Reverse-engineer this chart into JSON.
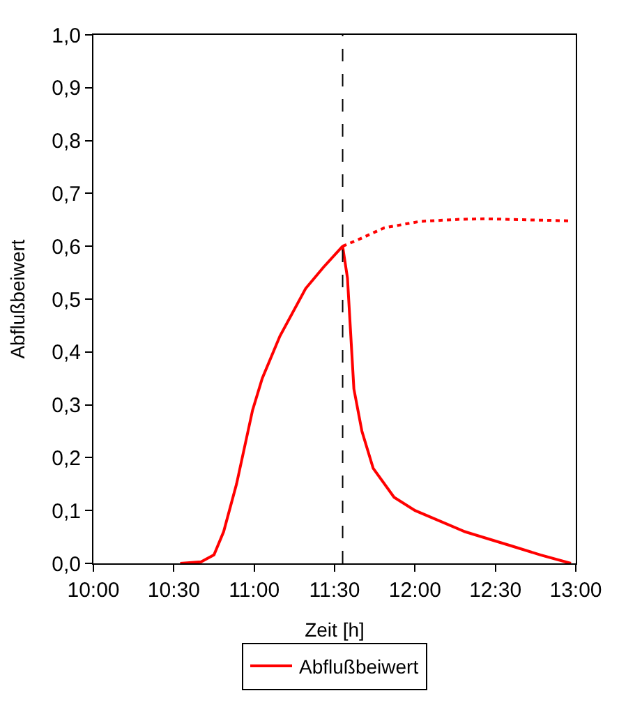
{
  "chart_data": {
    "type": "line",
    "xlabel": "Zeit [h]",
    "ylabel": "Abflußbeiwert",
    "xlim": [
      10,
      13
    ],
    "ylim": [
      0,
      1
    ],
    "xticks": [
      {
        "value": 10,
        "label": "10:00"
      },
      {
        "value": 10.5,
        "label": "10:30"
      },
      {
        "value": 11,
        "label": "11:00"
      },
      {
        "value": 11.5,
        "label": "11:30"
      },
      {
        "value": 12,
        "label": "12:00"
      },
      {
        "value": 12.5,
        "label": "12:30"
      },
      {
        "value": 13,
        "label": "13:00"
      }
    ],
    "yticks": [
      {
        "value": 0,
        "label": "0,0"
      },
      {
        "value": 0.1,
        "label": "0,1"
      },
      {
        "value": 0.2,
        "label": "0,2"
      },
      {
        "value": 0.3,
        "label": "0,3"
      },
      {
        "value": 0.4,
        "label": "0,4"
      },
      {
        "value": 0.5,
        "label": "0,5"
      },
      {
        "value": 0.6,
        "label": "0,6"
      },
      {
        "value": 0.7,
        "label": "0,7"
      },
      {
        "value": 0.8,
        "label": "0,8"
      },
      {
        "value": 0.9,
        "label": "0,9"
      },
      {
        "value": 1,
        "label": "1,0"
      }
    ],
    "legend": "bottom",
    "marker": "none",
    "series": [
      {
        "name": "Abflußbeiwert",
        "color": "#ff0000",
        "line_style": "solid",
        "x": [
          10.54,
          10.67,
          10.75,
          10.81,
          10.89,
          10.99,
          11.05,
          11.16,
          11.32,
          11.43,
          11.55,
          11.58,
          11.62,
          11.67,
          11.74,
          11.87,
          12.0,
          12.31,
          12.6,
          12.78,
          12.97
        ],
        "values": [
          0,
          0.003,
          0.016,
          0.06,
          0.15,
          0.29,
          0.35,
          0.43,
          0.52,
          0.56,
          0.6,
          0.54,
          0.33,
          0.25,
          0.18,
          0.125,
          0.1,
          0.06,
          0.033,
          0.016,
          0
        ]
      },
      {
        "color": "#ff0000",
        "line_style": "dotted",
        "x": [
          11.55,
          11.65,
          11.81,
          12.03,
          12.28,
          12.44,
          12.97
        ],
        "values": [
          0.6,
          0.613,
          0.635,
          0.647,
          0.651,
          0.652,
          0.648
        ]
      }
    ],
    "ref_lines": [
      {
        "axis": "x",
        "value": 11.55,
        "color": "#000000",
        "line_style": "dashed"
      }
    ]
  }
}
